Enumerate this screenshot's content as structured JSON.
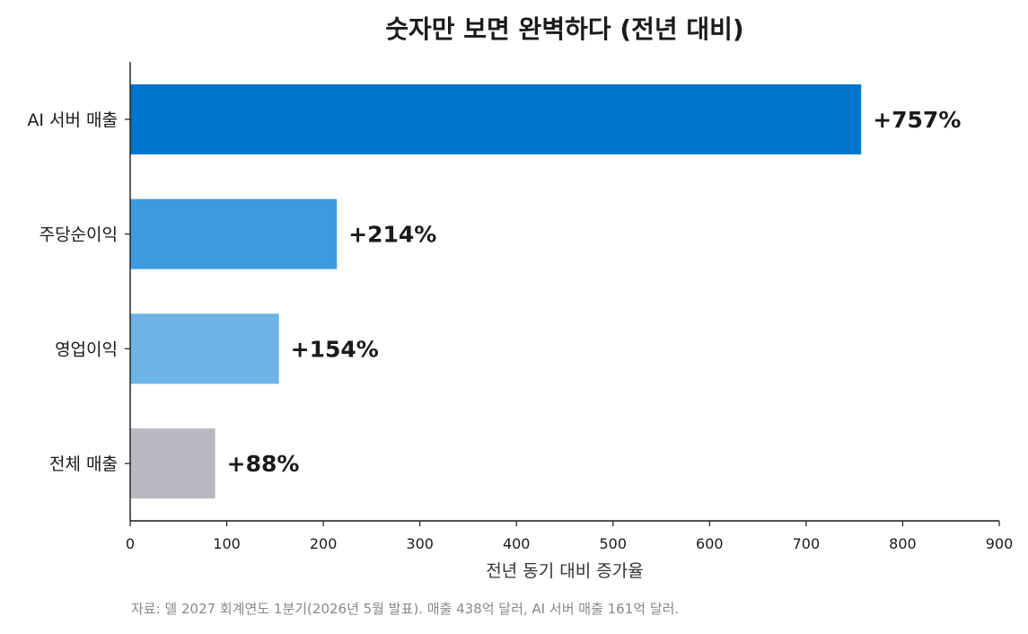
{
  "chart_data": {
    "type": "bar",
    "orientation": "horizontal",
    "title": "숫자만 보면 완벽하다 (전년 대비)",
    "xlabel": "전년 동기 대비 증가율",
    "ylabel": "",
    "xlim": [
      0,
      900
    ],
    "x_ticks": [
      0,
      100,
      200,
      300,
      400,
      500,
      600,
      700,
      800,
      900
    ],
    "categories": [
      "AI 서버 매출",
      "주당순이익",
      "영업이익",
      "전체 매출"
    ],
    "values": [
      757,
      214,
      154,
      88
    ],
    "value_labels": [
      "+757%",
      "+214%",
      "+154%",
      "+88%"
    ],
    "bar_colors": [
      "#0075CE",
      "#3D9AE0",
      "#6CB4E8",
      "#B8B9C1"
    ],
    "grid": false,
    "legend": false,
    "source_note": "자료: 델 2027 회계연도 1분기(2026년 5월 발표). 매출 438억 달러, AI 서버 매출 161억 달러."
  }
}
